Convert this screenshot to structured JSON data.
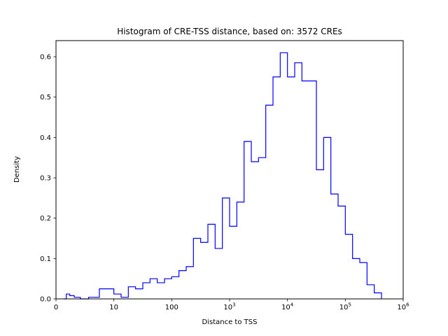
{
  "chart_data": {
    "type": "histogram-step",
    "title": "Histogram of CRE-TSS distance, based on: 3572 CREs",
    "xlabel": "Distance to TSS",
    "ylabel": "Density",
    "n_samples_in_title": 3572,
    "line_color": "#0000ff",
    "background_color": "#ffffff",
    "grid": false,
    "legend": "none",
    "x_scale": "symlog",
    "x_scale_note": "linear from 0 to 10, then logarithmic up to 1e6; equal spacing per decade",
    "xlim": [
      0,
      1000000
    ],
    "ylim": [
      0,
      0.64
    ],
    "x_ticks": [
      {
        "pos": 0,
        "label": "0",
        "exp": null
      },
      {
        "pos": 1,
        "label": "10",
        "exp": null
      },
      {
        "pos": 2,
        "label": "100",
        "exp": null
      },
      {
        "pos": 3,
        "label": "10",
        "exp": "3"
      },
      {
        "pos": 4,
        "label": "10",
        "exp": "4"
      },
      {
        "pos": 5,
        "label": "10",
        "exp": "5"
      },
      {
        "pos": 6,
        "label": "10",
        "exp": "6"
      }
    ],
    "y_ticks": [
      {
        "value": 0.0,
        "label": "0.0"
      },
      {
        "value": 0.1,
        "label": "0.1"
      },
      {
        "value": 0.2,
        "label": "0.2"
      },
      {
        "value": 0.3,
        "label": "0.3"
      },
      {
        "value": 0.4,
        "label": "0.4"
      },
      {
        "value": 0.5,
        "label": "0.5"
      },
      {
        "value": 0.6,
        "label": "0.6"
      }
    ],
    "bin_edges_log10": [
      0.125,
      0.25,
      0.375,
      0.5,
      0.625,
      0.75,
      0.875,
      1.0,
      1.125,
      1.25,
      1.375,
      1.5,
      1.625,
      1.75,
      1.875,
      2.0,
      2.125,
      2.25,
      2.375,
      2.5,
      2.625,
      2.75,
      2.875,
      3.0,
      3.125,
      3.25,
      3.375,
      3.5,
      3.625,
      3.75,
      3.875,
      4.0,
      4.125,
      4.25,
      4.375,
      4.5,
      4.625,
      4.75,
      4.875,
      5.0,
      5.125,
      5.25,
      5.375,
      5.5,
      5.625
    ],
    "densities": [
      0.0,
      0.012,
      0.008,
      0.004,
      0.0,
      0.004,
      0.025,
      0.012,
      0.004,
      0.03,
      0.025,
      0.04,
      0.05,
      0.04,
      0.05,
      0.055,
      0.07,
      0.08,
      0.15,
      0.14,
      0.185,
      0.125,
      0.25,
      0.18,
      0.24,
      0.39,
      0.34,
      0.35,
      0.48,
      0.55,
      0.61,
      0.55,
      0.585,
      0.54,
      0.54,
      0.32,
      0.4,
      0.26,
      0.23,
      0.16,
      0.1,
      0.09,
      0.035,
      0.015
    ]
  }
}
